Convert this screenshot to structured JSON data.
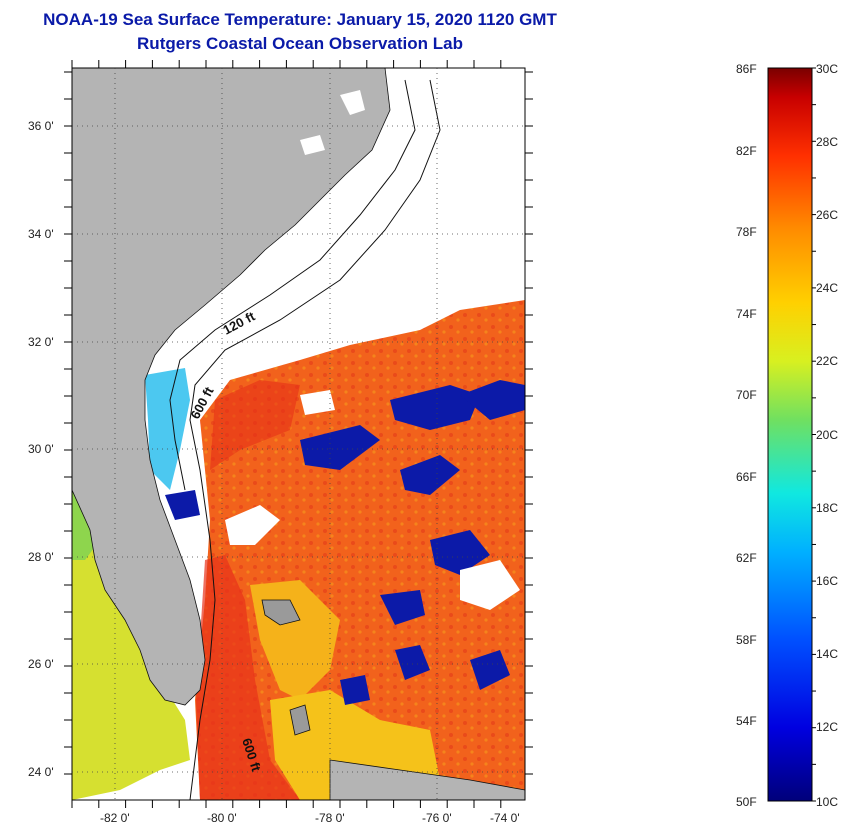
{
  "title": {
    "line1": "NOAA-19 Sea Surface Temperature:  January 15, 2020 1120 GMT",
    "line2": "Rutgers Coastal Ocean Observation Lab"
  },
  "map": {
    "lat_labels": [
      "36 0'",
      "34 0'",
      "32 0'",
      "30 0'",
      "28 0'",
      "26 0'",
      "24 0'"
    ],
    "lon_labels": [
      "-82 0'",
      "-80 0'",
      "-78 0'",
      "-76 0'",
      "-74 0'"
    ],
    "contours": [
      "120 ft",
      "600 ft",
      "600 ft"
    ],
    "colors": {
      "land": "#b4b4b4",
      "cloud": "#ffffff",
      "warm": "#f2621c",
      "hot": "#e8321a",
      "mid": "#f5b21a",
      "cool": "#4cc8f0",
      "cold": "#0c1aa8"
    }
  },
  "colorbar": {
    "f_labels": [
      "86F",
      "82F",
      "78F",
      "74F",
      "70F",
      "66F",
      "62F",
      "58F",
      "54F",
      "50F"
    ],
    "c_labels": [
      "30C",
      "28C",
      "26C",
      "24C",
      "22C",
      "20C",
      "18C",
      "16C",
      "14C",
      "12C",
      "10C"
    ]
  }
}
